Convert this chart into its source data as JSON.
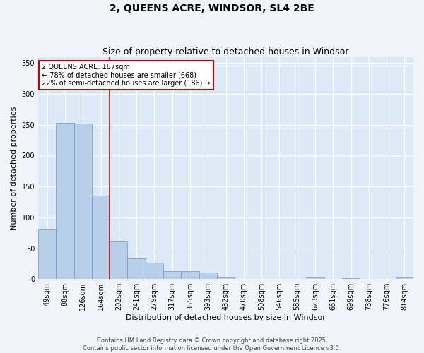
{
  "title": "2, QUEENS ACRE, WINDSOR, SL4 2BE",
  "subtitle": "Size of property relative to detached houses in Windsor",
  "xlabel": "Distribution of detached houses by size in Windsor",
  "ylabel": "Number of detached properties",
  "categories": [
    "49sqm",
    "88sqm",
    "126sqm",
    "164sqm",
    "202sqm",
    "241sqm",
    "279sqm",
    "317sqm",
    "355sqm",
    "393sqm",
    "432sqm",
    "470sqm",
    "508sqm",
    "546sqm",
    "585sqm",
    "623sqm",
    "661sqm",
    "699sqm",
    "738sqm",
    "776sqm",
    "814sqm"
  ],
  "values": [
    80,
    253,
    252,
    135,
    61,
    34,
    26,
    13,
    13,
    10,
    2,
    0,
    0,
    0,
    0,
    2,
    0,
    1,
    0,
    0,
    2
  ],
  "bar_color": "#b8d0ea",
  "bar_edge_color": "#6699cc",
  "red_line_index": 3.5,
  "annotation_text": "2 QUEENS ACRE: 187sqm\n← 78% of detached houses are smaller (668)\n22% of semi-detached houses are larger (186) →",
  "annotation_box_facecolor": "#ffffff",
  "annotation_box_edgecolor": "#cc0000",
  "red_line_color": "#cc0000",
  "background_color": "#dce9f7",
  "fig_background_color": "#f0f4f8",
  "grid_color": "#ffffff",
  "ylim": [
    0,
    360
  ],
  "yticks": [
    0,
    50,
    100,
    150,
    200,
    250,
    300,
    350
  ],
  "footer1": "Contains HM Land Registry data © Crown copyright and database right 2025.",
  "footer2": "Contains public sector information licensed under the Open Government Licence v3.0.",
  "title_fontsize": 10,
  "subtitle_fontsize": 9,
  "tick_fontsize": 7,
  "ylabel_fontsize": 8,
  "xlabel_fontsize": 8,
  "annotation_fontsize": 7,
  "footer_fontsize": 6
}
